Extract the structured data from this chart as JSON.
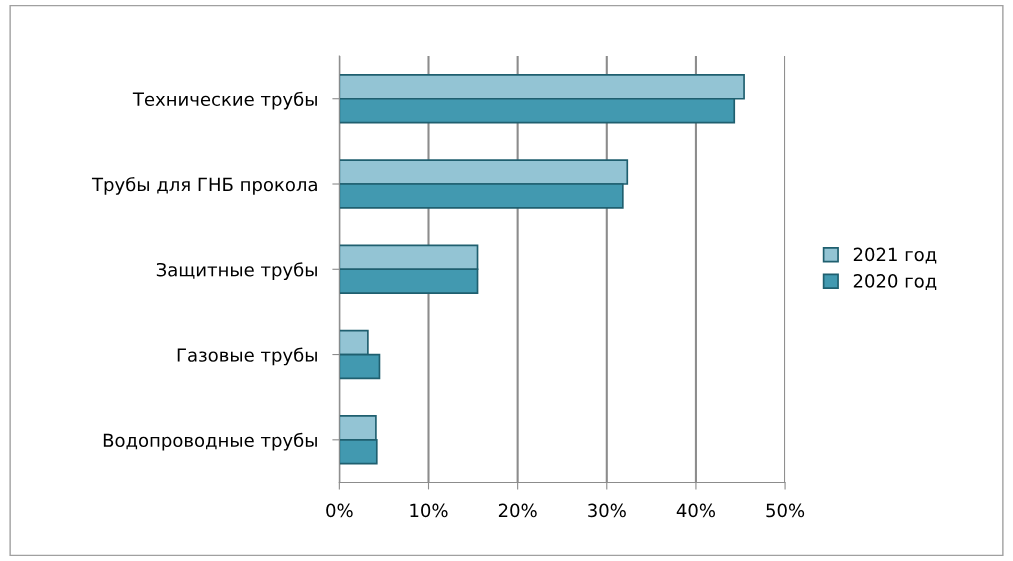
{
  "chart_data": {
    "type": "bar",
    "orientation": "horizontal",
    "categories": [
      "Технические трубы",
      "Трубы для ГНБ прокола",
      "Защитные трубы",
      "Газовые трубы",
      "Водопроводные трубы"
    ],
    "series": [
      {
        "name": "2021 год",
        "color": "#93c4d4",
        "values": [
          45.4,
          32.3,
          15.5,
          3.2,
          4.1
        ]
      },
      {
        "name": "2020 год",
        "color": "#4299b0",
        "values": [
          44.3,
          31.8,
          15.5,
          4.5,
          4.2
        ]
      }
    ],
    "xlim": [
      0,
      50
    ],
    "xticks": [
      {
        "value": 0,
        "label": "0%"
      },
      {
        "value": 10,
        "label": "10%"
      },
      {
        "value": 20,
        "label": "20%"
      },
      {
        "value": 30,
        "label": "30%"
      },
      {
        "value": 40,
        "label": "40%"
      },
      {
        "value": 50,
        "label": "50%"
      }
    ],
    "grid": "x",
    "legend": "right"
  }
}
